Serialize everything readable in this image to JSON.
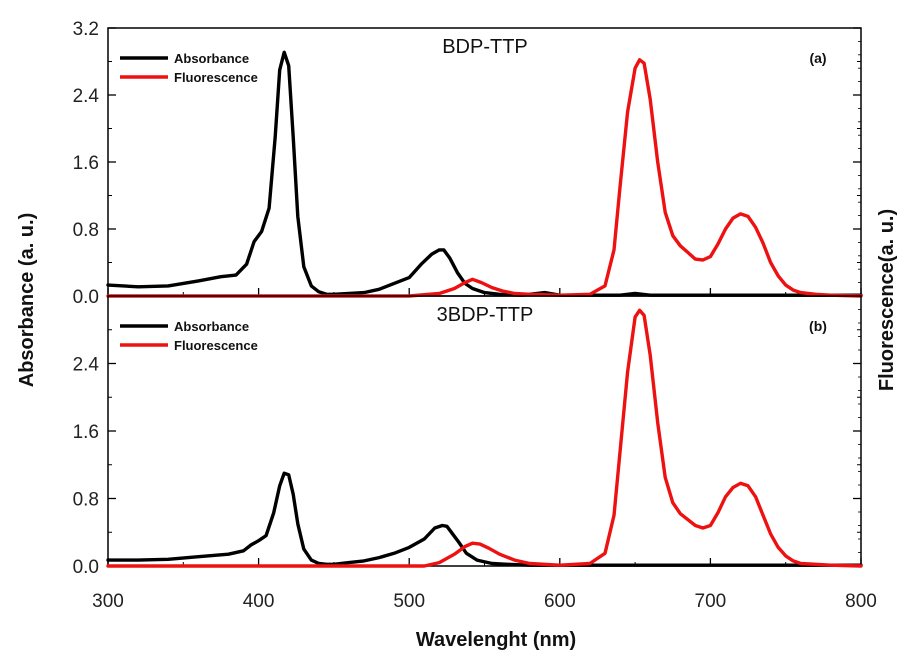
{
  "chart_data": {
    "type": "line",
    "xlabel": "Wavelenght (nm)",
    "ylabel_left": "Absorbance (a. u.)",
    "ylabel_right": "Fluorescence(a. u.)",
    "xlim": [
      300,
      800
    ],
    "x_ticks": [
      "300",
      "400",
      "500",
      "600",
      "700",
      "800"
    ],
    "colors": {
      "absorbance": "#000000",
      "fluorescence": "#ee1111"
    },
    "panels": [
      {
        "title": "BDP-TTP",
        "tag": "(a)",
        "ylim": [
          0,
          3.2
        ],
        "y_ticks": [
          "0.0",
          "0.8",
          "1.6",
          "2.4",
          "3.2"
        ],
        "legend": [
          "Absorbance",
          "Fluorescence"
        ],
        "legend_position": "top-left",
        "series": [
          {
            "name": "Absorbance",
            "x": [
              300,
              320,
              340,
              360,
              375,
              385,
              392,
              397,
              402,
              407,
              411,
              414,
              417,
              420,
              423,
              426,
              430,
              435,
              440,
              445,
              450,
              460,
              470,
              480,
              490,
              500,
              508,
              515,
              520,
              523,
              527,
              532,
              537,
              542,
              550,
              560,
              575,
              590,
              600,
              620,
              640,
              650,
              660,
              700,
              800
            ],
            "y": [
              0.13,
              0.11,
              0.12,
              0.18,
              0.23,
              0.25,
              0.38,
              0.65,
              0.77,
              1.05,
              1.9,
              2.7,
              2.91,
              2.75,
              1.9,
              0.95,
              0.35,
              0.12,
              0.05,
              0.02,
              0.02,
              0.03,
              0.04,
              0.08,
              0.15,
              0.22,
              0.38,
              0.5,
              0.55,
              0.55,
              0.45,
              0.28,
              0.15,
              0.09,
              0.04,
              0.02,
              0.01,
              0.04,
              0.01,
              0.01,
              0.01,
              0.03,
              0.01,
              0.01,
              0.01
            ]
          },
          {
            "name": "Fluorescence",
            "x": [
              300,
              500,
              520,
              530,
              537,
              542,
              548,
              555,
              562,
              570,
              580,
              600,
              620,
              630,
              636,
              640,
              645,
              650,
              653,
              656,
              660,
              665,
              670,
              675,
              680,
              685,
              690,
              695,
              700,
              705,
              710,
              715,
              720,
              725,
              730,
              735,
              740,
              745,
              750,
              755,
              760,
              770,
              780,
              800
            ],
            "y": [
              0.0,
              0.0,
              0.03,
              0.09,
              0.16,
              0.2,
              0.16,
              0.1,
              0.06,
              0.03,
              0.02,
              0.01,
              0.02,
              0.12,
              0.55,
              1.3,
              2.2,
              2.72,
              2.82,
              2.78,
              2.35,
              1.6,
              1.0,
              0.72,
              0.6,
              0.52,
              0.44,
              0.43,
              0.47,
              0.62,
              0.8,
              0.93,
              0.98,
              0.95,
              0.82,
              0.63,
              0.4,
              0.24,
              0.13,
              0.07,
              0.04,
              0.02,
              0.01,
              0.0
            ]
          }
        ]
      },
      {
        "title": "3BDP-TTP",
        "tag": "(b)",
        "ylim": [
          0,
          3.2
        ],
        "y_ticks": [
          "0.0",
          "0.8",
          "1.6",
          "2.4"
        ],
        "legend": [
          "Absorbance",
          "Fluorescence"
        ],
        "legend_position": "top-left",
        "series": [
          {
            "name": "Absorbance",
            "x": [
              300,
              320,
              340,
              360,
              380,
              390,
              395,
              400,
              405,
              410,
              414,
              417,
              420,
              423,
              426,
              430,
              435,
              440,
              445,
              450,
              460,
              470,
              480,
              490,
              500,
              510,
              517,
              522,
              525,
              528,
              533,
              538,
              545,
              555,
              565,
              580,
              600,
              650,
              800
            ],
            "y": [
              0.07,
              0.07,
              0.08,
              0.11,
              0.14,
              0.18,
              0.25,
              0.3,
              0.36,
              0.63,
              0.95,
              1.1,
              1.08,
              0.85,
              0.5,
              0.2,
              0.07,
              0.03,
              0.02,
              0.02,
              0.04,
              0.06,
              0.1,
              0.15,
              0.22,
              0.32,
              0.45,
              0.48,
              0.47,
              0.4,
              0.28,
              0.15,
              0.07,
              0.03,
              0.02,
              0.01,
              0.01,
              0.01,
              0.01
            ]
          },
          {
            "name": "Fluorescence",
            "x": [
              300,
              510,
              520,
              530,
              537,
              542,
              547,
              553,
              560,
              570,
              580,
              600,
              620,
              630,
              636,
              640,
              645,
              650,
              653,
              656,
              660,
              665,
              670,
              675,
              680,
              685,
              690,
              695,
              700,
              705,
              710,
              715,
              720,
              725,
              730,
              735,
              740,
              745,
              750,
              755,
              760,
              770,
              780,
              800
            ],
            "y": [
              0.0,
              0.0,
              0.04,
              0.14,
              0.23,
              0.27,
              0.26,
              0.21,
              0.14,
              0.07,
              0.03,
              0.01,
              0.03,
              0.15,
              0.6,
              1.35,
              2.3,
              2.95,
              3.03,
              2.97,
              2.5,
              1.7,
              1.05,
              0.75,
              0.62,
              0.55,
              0.48,
              0.45,
              0.48,
              0.63,
              0.82,
              0.93,
              0.98,
              0.95,
              0.82,
              0.6,
              0.38,
              0.22,
              0.12,
              0.06,
              0.03,
              0.02,
              0.01,
              0.0
            ]
          }
        ]
      }
    ]
  }
}
